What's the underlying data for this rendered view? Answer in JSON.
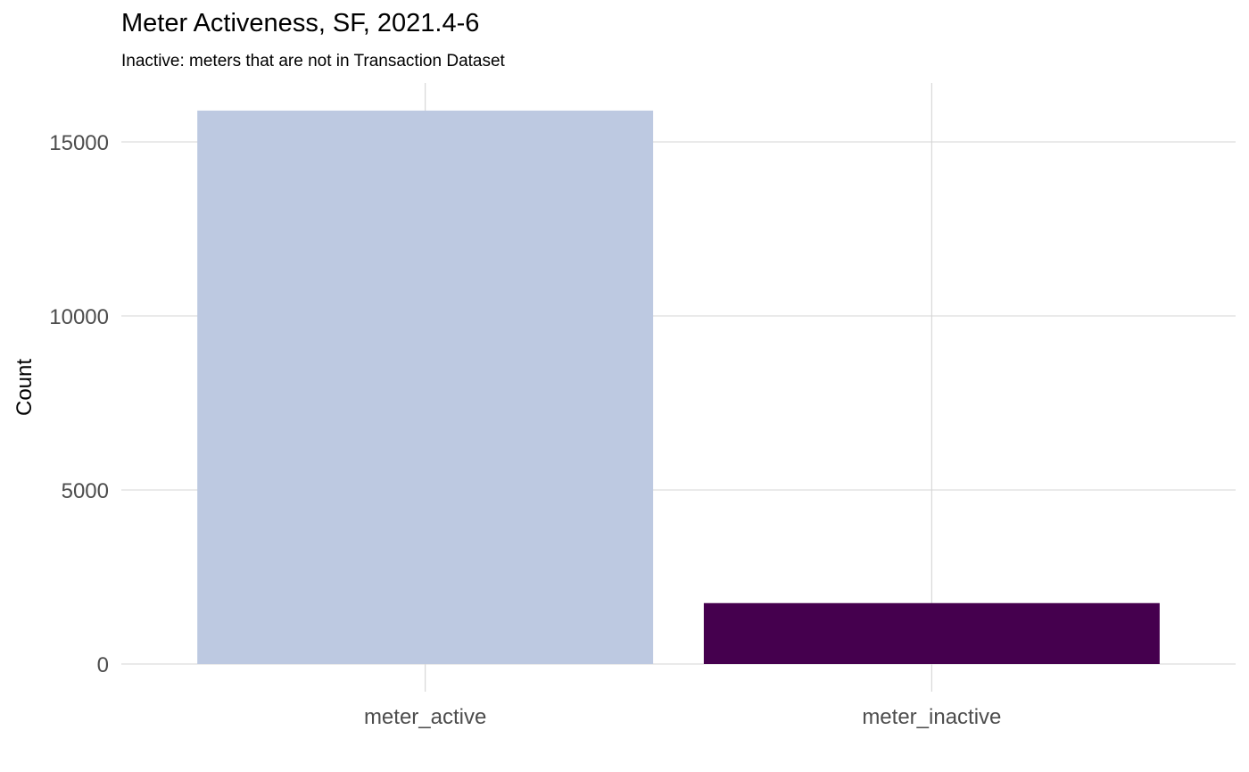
{
  "chart_data": {
    "type": "bar",
    "title": "Meter Activeness, SF, 2021.4-6",
    "subtitle": "Inactive: meters that are not in Transaction Dataset",
    "xlabel": "",
    "ylabel": "Count",
    "categories": [
      "meter_active",
      "meter_inactive"
    ],
    "values": [
      15900,
      1750
    ],
    "colors": [
      "#bdc9e1",
      "#45004e"
    ],
    "ylim": [
      0,
      15900
    ],
    "yticks": [
      0,
      5000,
      10000,
      15000
    ],
    "ytick_labels": [
      "0",
      "5000",
      "10000",
      "15000"
    ],
    "grid": true,
    "legend": "none"
  }
}
